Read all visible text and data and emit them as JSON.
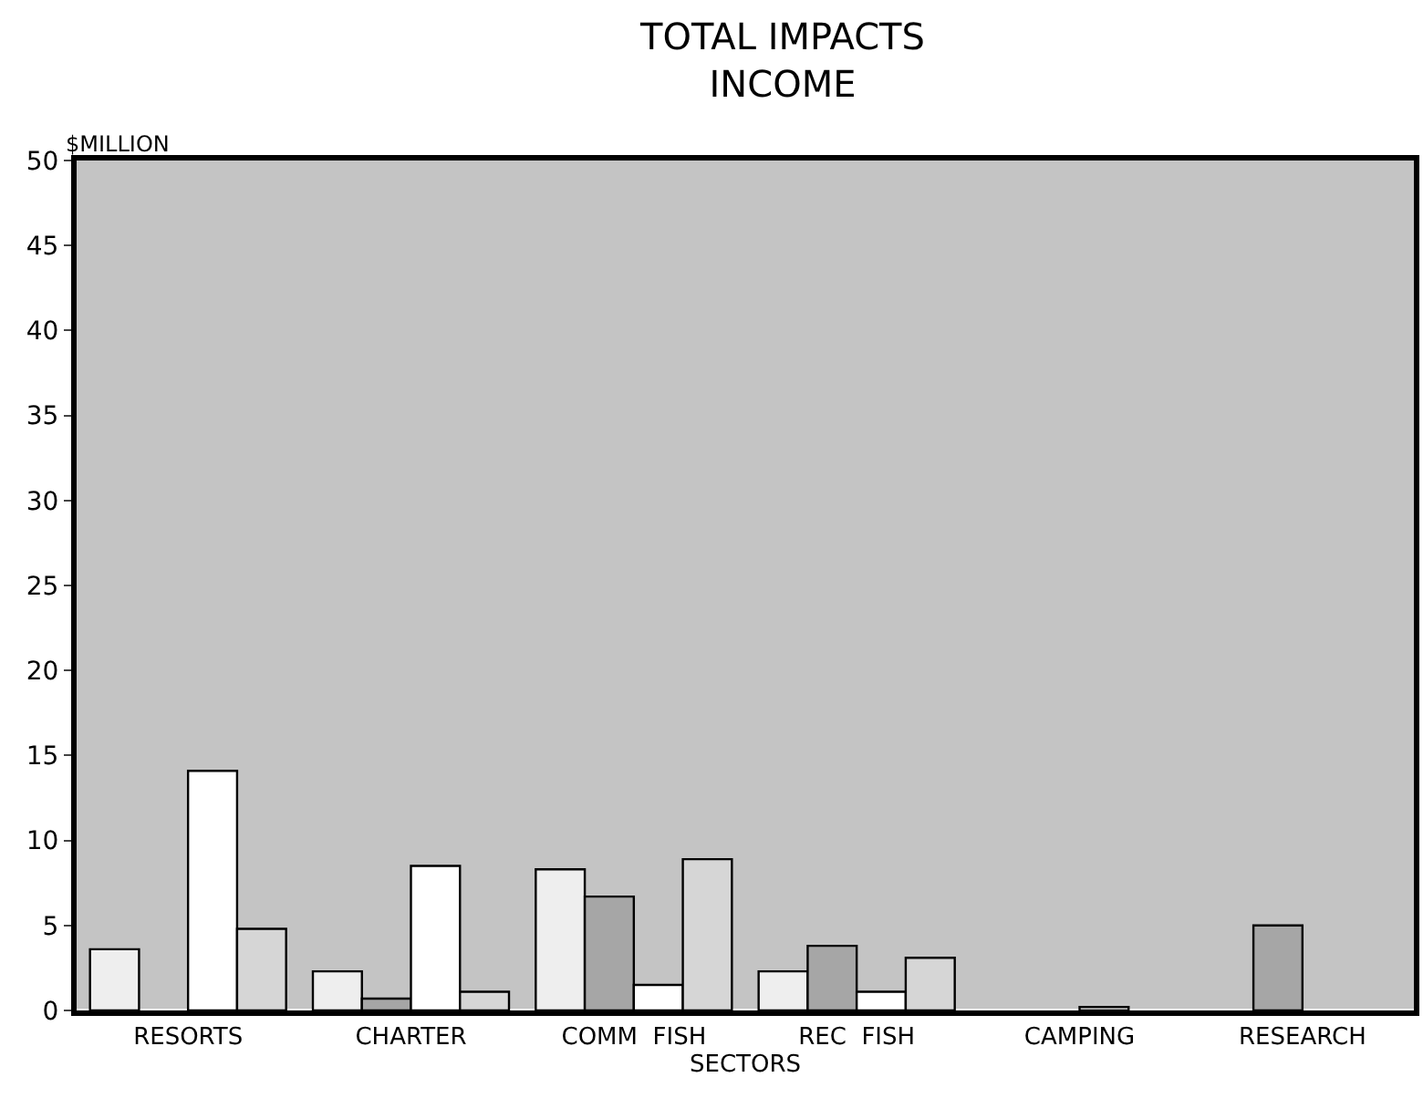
{
  "chart_data": {
    "type": "bar",
    "title": "TOTAL IMPACTS\nINCOME",
    "xlabel": "SECTORS",
    "ylabel": "$MILLION",
    "categories": [
      "RESORTS",
      "CHARTER",
      "COMM  FISH",
      "REC  FISH",
      "CAMPING",
      "RESEARCH"
    ],
    "series": [
      {
        "color": "#eeeeee",
        "values": [
          3.6,
          2.3,
          8.3,
          2.3,
          null,
          null
        ]
      },
      {
        "color": "#a6a6a6",
        "values": [
          null,
          0.7,
          6.7,
          3.8,
          null,
          5.0
        ]
      },
      {
        "color": "#ffffff",
        "values": [
          14.1,
          8.5,
          1.5,
          1.1,
          0.2,
          null
        ]
      },
      {
        "color": "#d6d6d6",
        "values": [
          4.8,
          1.1,
          8.9,
          3.1,
          null,
          null
        ]
      }
    ],
    "ylim": [
      0,
      50
    ],
    "yticks": [
      0,
      5,
      10,
      15,
      20,
      25,
      30,
      35,
      40,
      45,
      50
    ],
    "grid": false,
    "legend": false
  }
}
